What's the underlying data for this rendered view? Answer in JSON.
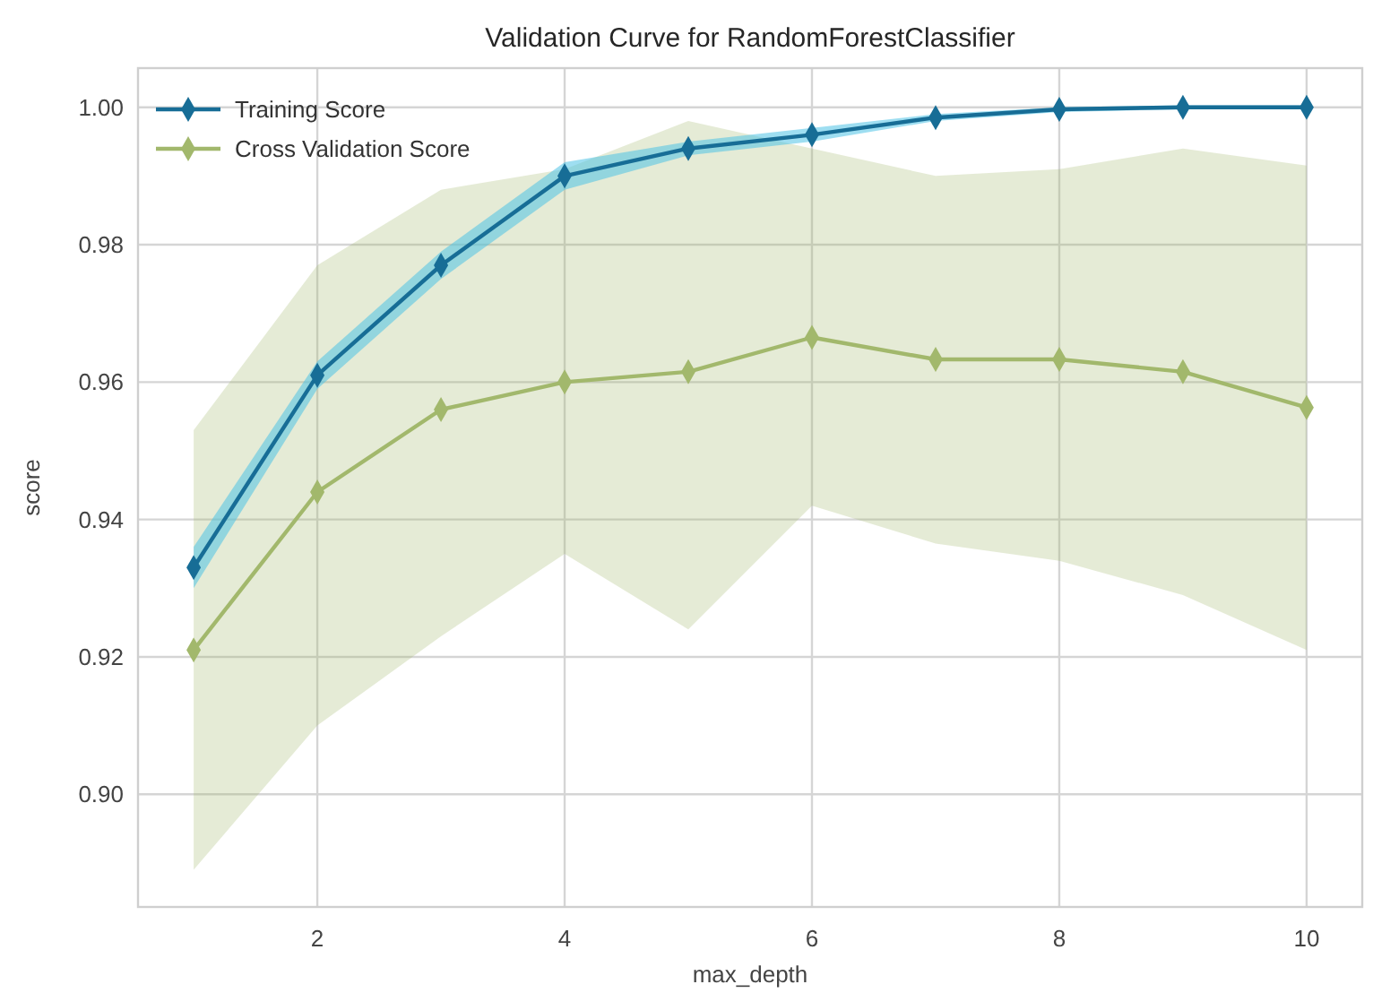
{
  "chart_data": {
    "type": "line",
    "title": "Validation Curve for RandomForestClassifier",
    "xlabel": "max_depth",
    "ylabel": "score",
    "x": [
      1,
      2,
      3,
      4,
      5,
      6,
      7,
      8,
      9,
      10
    ],
    "xlim": [
      0.55,
      10.45
    ],
    "xticks": [
      2,
      4,
      6,
      8,
      10
    ],
    "ylim": [
      0.8836,
      1.0057
    ],
    "yticks": [
      {
        "value": 0.9,
        "label": "0.90"
      },
      {
        "value": 0.92,
        "label": "0.92"
      },
      {
        "value": 0.94,
        "label": "0.94"
      },
      {
        "value": 0.96,
        "label": "0.96"
      },
      {
        "value": 0.98,
        "label": "0.98"
      },
      {
        "value": 1.0,
        "label": "1.00"
      }
    ],
    "grid": true,
    "legend": "top left",
    "marker": "diamond",
    "line_style": "solid",
    "series": [
      {
        "name": "Training Score",
        "color": "#176d96",
        "values": [
          0.933,
          0.961,
          0.977,
          0.99,
          0.994,
          0.996,
          0.9985,
          0.9997,
          1.0,
          1.0
        ],
        "lower": [
          0.93,
          0.959,
          0.975,
          0.988,
          0.993,
          0.995,
          0.998,
          0.9993,
          0.9997,
          0.9997
        ],
        "upper": [
          0.936,
          0.963,
          0.979,
          0.992,
          0.995,
          0.997,
          0.999,
          1.0,
          1.0003,
          1.0003
        ]
      },
      {
        "name": "Cross Validation Score",
        "color": "#a2b86c",
        "values": [
          0.921,
          0.944,
          0.956,
          0.96,
          0.9615,
          0.9665,
          0.9633,
          0.9633,
          0.9615,
          0.9563
        ],
        "lower": [
          0.889,
          0.91,
          0.923,
          0.935,
          0.924,
          0.942,
          0.9365,
          0.934,
          0.929,
          0.921
        ],
        "upper": [
          0.953,
          0.977,
          0.988,
          0.991,
          0.998,
          0.994,
          0.99,
          0.991,
          0.994,
          0.9915
        ]
      }
    ]
  }
}
